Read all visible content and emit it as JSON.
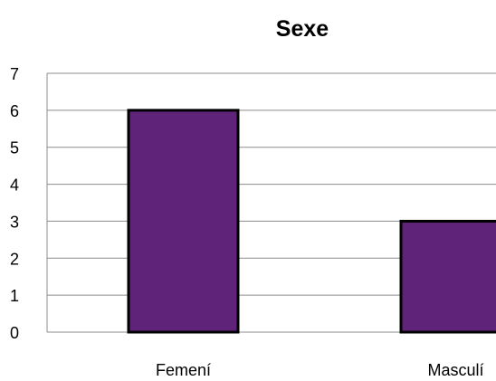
{
  "chart_data": {
    "type": "bar",
    "title": "Sexe",
    "xlabel": "",
    "ylabel": "",
    "categories": [
      "Femení",
      "Masculí"
    ],
    "values": [
      6,
      3
    ],
    "ylim": [
      0,
      7
    ],
    "yticks": [
      "0",
      "1",
      "2",
      "3",
      "4",
      "5",
      "6",
      "7"
    ],
    "grid": true,
    "legend": "none",
    "bar_color": "#5f2379",
    "bar_border_color": "#000000",
    "gridline_color": "#8c8c8c"
  }
}
